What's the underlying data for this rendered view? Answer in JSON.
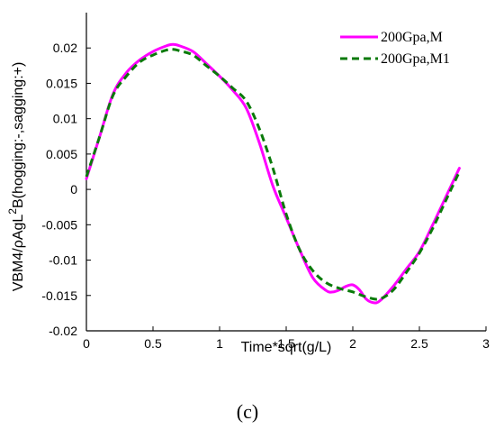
{
  "chart_data": {
    "type": "line",
    "xlabel": "Time*sqrt(g/L)",
    "ylabel_parts": {
      "before_sup": "VBM4/ρAgL",
      "sup": "2",
      "after_sup": "B(hogging:-,sagging:+)"
    },
    "xlim": [
      0,
      3
    ],
    "ylim": [
      -0.02,
      0.025
    ],
    "xticks": [
      0,
      0.5,
      1,
      1.5,
      2,
      2.5,
      3
    ],
    "xtick_labels": [
      "0",
      "0.5",
      "1",
      "1.5",
      "2",
      "2.5",
      "3"
    ],
    "yticks": [
      -0.02,
      -0.015,
      -0.01,
      -0.005,
      0,
      0.005,
      0.01,
      0.015,
      0.02
    ],
    "ytick_labels": [
      "-0.02",
      "-0.015",
      "-0.01",
      "-0.005",
      "0",
      "0.005",
      "0.01",
      "0.015",
      "0.02"
    ],
    "grid": false,
    "legend_position": "top-right",
    "series": [
      {
        "name": "200Gpa,M",
        "color": "#ff00ff",
        "line_style": "solid",
        "x": [
          0,
          0.1,
          0.2,
          0.3,
          0.4,
          0.5,
          0.6,
          0.65,
          0.7,
          0.8,
          0.9,
          1.0,
          1.1,
          1.2,
          1.3,
          1.4,
          1.5,
          1.6,
          1.7,
          1.8,
          1.85,
          1.9,
          1.95,
          2.0,
          2.05,
          2.1,
          2.15,
          2.2,
          2.3,
          2.4,
          2.5,
          2.6,
          2.7,
          2.8
        ],
        "y": [
          0.0015,
          0.0075,
          0.0135,
          0.0165,
          0.0183,
          0.0195,
          0.0203,
          0.0205,
          0.0203,
          0.0195,
          0.0178,
          0.016,
          0.014,
          0.0115,
          0.0065,
          0.0005,
          -0.004,
          -0.0085,
          -0.0125,
          -0.0143,
          -0.0145,
          -0.0142,
          -0.0137,
          -0.0135,
          -0.0142,
          -0.0155,
          -0.016,
          -0.0158,
          -0.0138,
          -0.0113,
          -0.0088,
          -0.005,
          -0.001,
          0.003
        ]
      },
      {
        "name": "200Gpa,M1",
        "color": "#0a7a0a",
        "line_style": "dashed",
        "x": [
          0,
          0.1,
          0.2,
          0.3,
          0.4,
          0.5,
          0.6,
          0.65,
          0.7,
          0.8,
          0.9,
          1.0,
          1.1,
          1.2,
          1.3,
          1.4,
          1.5,
          1.6,
          1.7,
          1.8,
          1.9,
          2.0,
          2.1,
          2.2,
          2.3,
          2.4,
          2.5,
          2.6,
          2.7,
          2.8
        ],
        "y": [
          0.0018,
          0.0075,
          0.0133,
          0.016,
          0.018,
          0.019,
          0.0197,
          0.0198,
          0.0196,
          0.019,
          0.0175,
          0.016,
          0.0143,
          0.0125,
          0.0085,
          0.003,
          -0.0035,
          -0.0085,
          -0.0115,
          -0.0132,
          -0.014,
          -0.0145,
          -0.0152,
          -0.0155,
          -0.0143,
          -0.0118,
          -0.009,
          -0.0055,
          -0.0015,
          0.0025
        ]
      }
    ]
  },
  "caption": "(c)"
}
